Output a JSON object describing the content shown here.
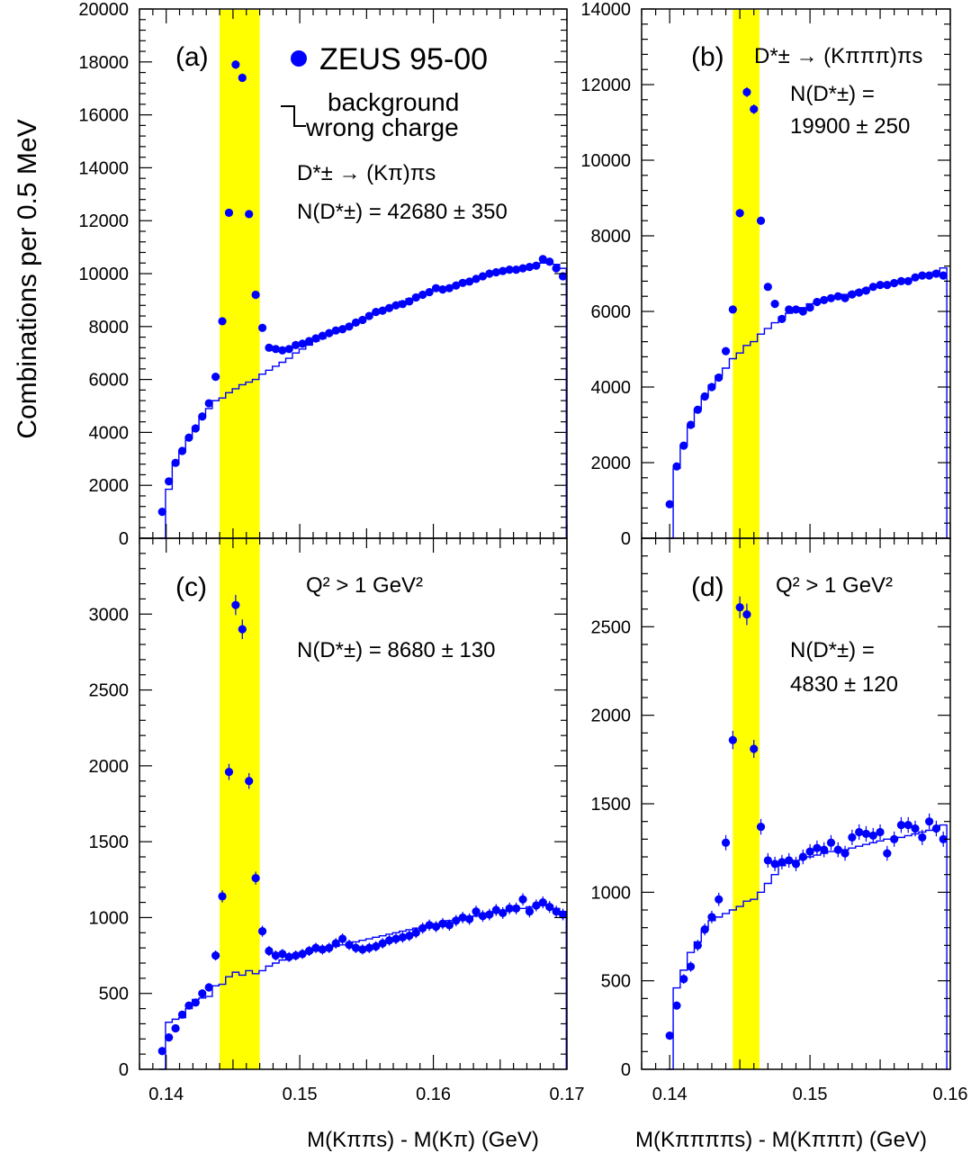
{
  "figure": {
    "ylabel": "Combinations per 0.5 MeV",
    "xlabel_left": "M(Kππs) - M(Kπ)  (GeV)",
    "xlabel_right": "M(Kππππs) - M(Kπππ)  (GeV)",
    "legend": {
      "data_label": "ZEUS 95-00",
      "bkg_line1": "background",
      "bkg_line2": "wrong charge"
    }
  },
  "colors": {
    "data": "#0000ff",
    "background_hist": "#0000ff",
    "signal_band": "#ffff00",
    "frame": "#000000"
  },
  "chart_data": [
    {
      "type": "scatter",
      "panel": "(a)",
      "annotations": [
        "D*± → (Kπ)πs",
        "N(D*±) = 42680 ± 350"
      ],
      "xlim": [
        0.138,
        0.17
      ],
      "ylim": [
        0,
        20000
      ],
      "xticks": [
        0.14,
        0.15,
        0.16,
        0.17
      ],
      "yticks": [
        0,
        2000,
        4000,
        6000,
        8000,
        10000,
        12000,
        14000,
        16000,
        18000,
        20000
      ],
      "signal_band": [
        0.144,
        0.147
      ],
      "series": [
        {
          "name": "ZEUS 95-00",
          "x": [
            0.1397,
            0.1402,
            0.1407,
            0.1412,
            0.1417,
            0.1422,
            0.1427,
            0.1432,
            0.1437,
            0.1442,
            0.1447,
            0.1452,
            0.1457,
            0.1462,
            0.1467,
            0.1472,
            0.1477,
            0.1482,
            0.1487,
            0.1492,
            0.1497,
            0.1502,
            0.1507,
            0.1512,
            0.1517,
            0.1522,
            0.1527,
            0.1532,
            0.1537,
            0.1542,
            0.1547,
            0.1552,
            0.1557,
            0.1562,
            0.1567,
            0.1572,
            0.1577,
            0.1582,
            0.1587,
            0.1592,
            0.1597,
            0.1602,
            0.1607,
            0.1612,
            0.1617,
            0.1622,
            0.1627,
            0.1632,
            0.1637,
            0.1642,
            0.1647,
            0.1652,
            0.1657,
            0.1662,
            0.1667,
            0.1672,
            0.1677,
            0.1682,
            0.1687,
            0.1692,
            0.1697
          ],
          "y": [
            1000,
            2150,
            2850,
            3300,
            3800,
            4150,
            4600,
            5100,
            6100,
            8200,
            12300,
            17900,
            17400,
            12250,
            9200,
            7950,
            7200,
            7150,
            7100,
            7150,
            7300,
            7350,
            7450,
            7550,
            7650,
            7750,
            7850,
            7900,
            8000,
            8150,
            8250,
            8400,
            8550,
            8600,
            8700,
            8800,
            8850,
            8950,
            9100,
            9200,
            9300,
            9450,
            9400,
            9450,
            9550,
            9650,
            9700,
            9800,
            9900,
            10000,
            10050,
            10100,
            10150,
            10150,
            10200,
            10250,
            10300,
            10550,
            10450,
            10200,
            9900
          ]
        },
        {
          "name": "background wrong charge",
          "y": [
            0,
            1850,
            2800,
            3300,
            3800,
            4200,
            4600,
            4900,
            5200,
            5300,
            5500,
            5650,
            5800,
            5900,
            6000,
            6200,
            6350,
            6500,
            6650,
            6800,
            7000,
            7150,
            7300,
            7450,
            7550,
            7700,
            7850,
            7950,
            8050,
            8150,
            8300,
            8450,
            8550,
            8650,
            8750,
            8850,
            8950,
            9050,
            9150,
            9250,
            9300,
            9400,
            9450,
            9500,
            9600,
            9700,
            9750,
            9800,
            9900,
            10000,
            10050,
            10100,
            10150,
            10200,
            10250,
            10300,
            10350,
            10400,
            10400,
            10350,
            10200
          ]
        }
      ]
    },
    {
      "type": "scatter",
      "panel": "(b)",
      "annotations": [
        "D*± → (Kπππ)πs",
        "N(D*±) =",
        "19900 ± 250"
      ],
      "xlim": [
        0.138,
        0.16
      ],
      "ylim": [
        0,
        14000
      ],
      "xticks": [
        0.14,
        0.15,
        0.16
      ],
      "yticks": [
        0,
        2000,
        4000,
        6000,
        8000,
        10000,
        12000,
        14000
      ],
      "signal_band": [
        0.1445,
        0.1464
      ],
      "series": [
        {
          "name": "ZEUS 95-00",
          "x": [
            0.14,
            0.1405,
            0.141,
            0.1415,
            0.142,
            0.1425,
            0.143,
            0.1435,
            0.144,
            0.1445,
            0.145,
            0.1455,
            0.146,
            0.1465,
            0.147,
            0.1475,
            0.148,
            0.1485,
            0.149,
            0.1495,
            0.15,
            0.1505,
            0.151,
            0.1515,
            0.152,
            0.1525,
            0.153,
            0.1535,
            0.154,
            0.1545,
            0.155,
            0.1555,
            0.156,
            0.1565,
            0.157,
            0.1575,
            0.158,
            0.1585,
            0.159,
            0.1595
          ],
          "y": [
            900,
            1900,
            2450,
            3000,
            3400,
            3750,
            4000,
            4250,
            4950,
            6050,
            8600,
            11800,
            11350,
            8400,
            6650,
            6200,
            5800,
            6050,
            6050,
            6000,
            6100,
            6250,
            6300,
            6350,
            6400,
            6350,
            6450,
            6500,
            6550,
            6650,
            6700,
            6700,
            6750,
            6800,
            6800,
            6900,
            6950,
            6950,
            7000,
            6950
          ]
        },
        {
          "name": "background wrong charge",
          "y": [
            0,
            1850,
            2450,
            2950,
            3400,
            3750,
            4050,
            4300,
            4500,
            4750,
            4900,
            5100,
            5200,
            5400,
            5550,
            5700,
            5850,
            5950,
            6050,
            6100,
            6200,
            6250,
            6300,
            6350,
            6400,
            6450,
            6500,
            6550,
            6600,
            6650,
            6700,
            6750,
            6750,
            6800,
            6850,
            6900,
            6950,
            7000,
            7050,
            7150
          ]
        }
      ]
    },
    {
      "type": "scatter",
      "panel": "(c)",
      "annotations": [
        "Q² > 1 GeV²",
        "N(D*±) = 8680 ± 130"
      ],
      "xlim": [
        0.138,
        0.17
      ],
      "ylim": [
        0,
        3500
      ],
      "xticks": [
        0.14,
        0.15,
        0.16,
        0.17
      ],
      "yticks": [
        0,
        500,
        1000,
        1500,
        2000,
        2500,
        3000
      ],
      "signal_band": [
        0.144,
        0.147
      ],
      "series": [
        {
          "name": "ZEUS 95-00",
          "x": [
            0.1397,
            0.1402,
            0.1407,
            0.1412,
            0.1417,
            0.1422,
            0.1427,
            0.1432,
            0.1437,
            0.1442,
            0.1447,
            0.1452,
            0.1457,
            0.1462,
            0.1467,
            0.1472,
            0.1477,
            0.1482,
            0.1487,
            0.1492,
            0.1497,
            0.1502,
            0.1507,
            0.1512,
            0.1517,
            0.1522,
            0.1527,
            0.1532,
            0.1537,
            0.1542,
            0.1547,
            0.1552,
            0.1557,
            0.1562,
            0.1567,
            0.1572,
            0.1577,
            0.1582,
            0.1587,
            0.1592,
            0.1597,
            0.1602,
            0.1607,
            0.1612,
            0.1617,
            0.1622,
            0.1627,
            0.1632,
            0.1637,
            0.1642,
            0.1647,
            0.1652,
            0.1657,
            0.1662,
            0.1667,
            0.1672,
            0.1677,
            0.1682,
            0.1687,
            0.1692,
            0.1697
          ],
          "y": [
            120,
            210,
            270,
            360,
            420,
            440,
            500,
            540,
            750,
            1140,
            1960,
            3060,
            2900,
            1900,
            1260,
            910,
            780,
            750,
            760,
            740,
            750,
            760,
            780,
            800,
            790,
            800,
            830,
            860,
            820,
            800,
            790,
            800,
            810,
            830,
            850,
            860,
            870,
            880,
            900,
            930,
            950,
            940,
            960,
            950,
            980,
            1000,
            990,
            1040,
            1010,
            1020,
            1050,
            1030,
            1060,
            1060,
            1120,
            1040,
            1080,
            1100,
            1070,
            1040,
            1020
          ]
        },
        {
          "name": "background wrong charge",
          "y": [
            0,
            310,
            330,
            340,
            400,
            460,
            470,
            480,
            550,
            560,
            610,
            640,
            620,
            650,
            630,
            650,
            680,
            700,
            720,
            740,
            750,
            760,
            770,
            780,
            790,
            800,
            810,
            820,
            830,
            840,
            850,
            860,
            870,
            880,
            890,
            900,
            910,
            920,
            930,
            940,
            950,
            960,
            970,
            980,
            990,
            1000,
            1000,
            1010,
            1020,
            1030,
            1040,
            1040,
            1050,
            1060,
            1060,
            1070,
            1070,
            1080,
            1080,
            1060,
            1040
          ]
        }
      ]
    },
    {
      "type": "scatter",
      "panel": "(d)",
      "annotations": [
        "Q² > 1 GeV²",
        "N(D*±) =",
        "4830 ± 120"
      ],
      "xlim": [
        0.138,
        0.16
      ],
      "ylim": [
        0,
        3000
      ],
      "xticks": [
        0.14,
        0.15,
        0.16
      ],
      "yticks": [
        0,
        500,
        1000,
        1500,
        2000,
        2500
      ],
      "signal_band": [
        0.1445,
        0.1464
      ],
      "series": [
        {
          "name": "ZEUS 95-00",
          "x": [
            0.14,
            0.1405,
            0.141,
            0.1415,
            0.142,
            0.1425,
            0.143,
            0.1435,
            0.144,
            0.1445,
            0.145,
            0.1455,
            0.146,
            0.1465,
            0.147,
            0.1475,
            0.148,
            0.1485,
            0.149,
            0.1495,
            0.15,
            0.1505,
            0.151,
            0.1515,
            0.152,
            0.1525,
            0.153,
            0.1535,
            0.154,
            0.1545,
            0.155,
            0.1555,
            0.156,
            0.1565,
            0.157,
            0.1575,
            0.158,
            0.1585,
            0.159,
            0.1595
          ],
          "y": [
            190,
            360,
            510,
            580,
            700,
            790,
            860,
            960,
            1280,
            1860,
            2610,
            2570,
            1810,
            1370,
            1180,
            1160,
            1170,
            1180,
            1160,
            1200,
            1230,
            1250,
            1240,
            1280,
            1240,
            1220,
            1310,
            1340,
            1330,
            1320,
            1340,
            1220,
            1300,
            1380,
            1380,
            1360,
            1310,
            1400,
            1360,
            1300
          ]
        },
        {
          "name": "background wrong charge",
          "y": [
            0,
            460,
            560,
            660,
            720,
            790,
            840,
            860,
            880,
            900,
            920,
            950,
            960,
            1000,
            1050,
            1100,
            1150,
            1170,
            1180,
            1190,
            1200,
            1210,
            1220,
            1230,
            1240,
            1240,
            1250,
            1260,
            1270,
            1280,
            1290,
            1300,
            1300,
            1310,
            1320,
            1330,
            1340,
            1350,
            1360,
            1380
          ]
        }
      ]
    }
  ]
}
